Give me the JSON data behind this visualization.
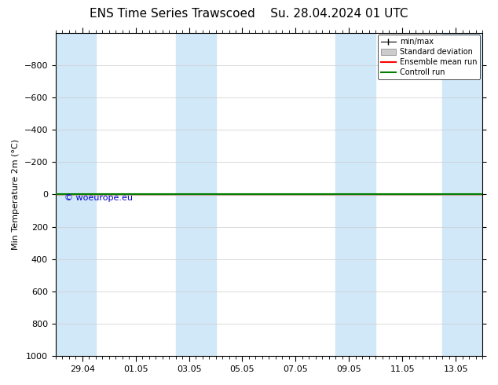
{
  "title_left": "ENS Time Series Trawscoed",
  "title_right": "Su. 28.04.2024 01 UTC",
  "ylabel": "Min Temperature 2m (°C)",
  "ylim_bottom": 1000,
  "ylim_top": -1000,
  "yticks": [
    -800,
    -600,
    -400,
    -200,
    0,
    200,
    400,
    600,
    800,
    1000
  ],
  "x_labels": [
    "29.04",
    "01.05",
    "03.05",
    "05.05",
    "07.05",
    "09.05",
    "11.05",
    "13.05"
  ],
  "x_tick_positions": [
    1,
    3,
    5,
    7,
    9,
    11,
    13,
    15
  ],
  "shaded_ranges": [
    [
      0,
      1.5
    ],
    [
      4.5,
      6.0
    ],
    [
      10.5,
      12.0
    ],
    [
      14.5,
      16.0
    ]
  ],
  "plot_bg": "#ffffff",
  "shaded_color": "#d0e8f8",
  "grid_color": "#cccccc",
  "ensemble_mean_color": "#ff0000",
  "control_run_color": "#008000",
  "std_dev_fill_color": "#cccccc",
  "min_max_color": "#000000",
  "watermark": "© woeurope.eu",
  "watermark_color": "#0000cc",
  "flat_value": 0,
  "x_min": 0,
  "x_max": 16,
  "title_fontsize": 11,
  "tick_fontsize": 8,
  "ylabel_fontsize": 8
}
